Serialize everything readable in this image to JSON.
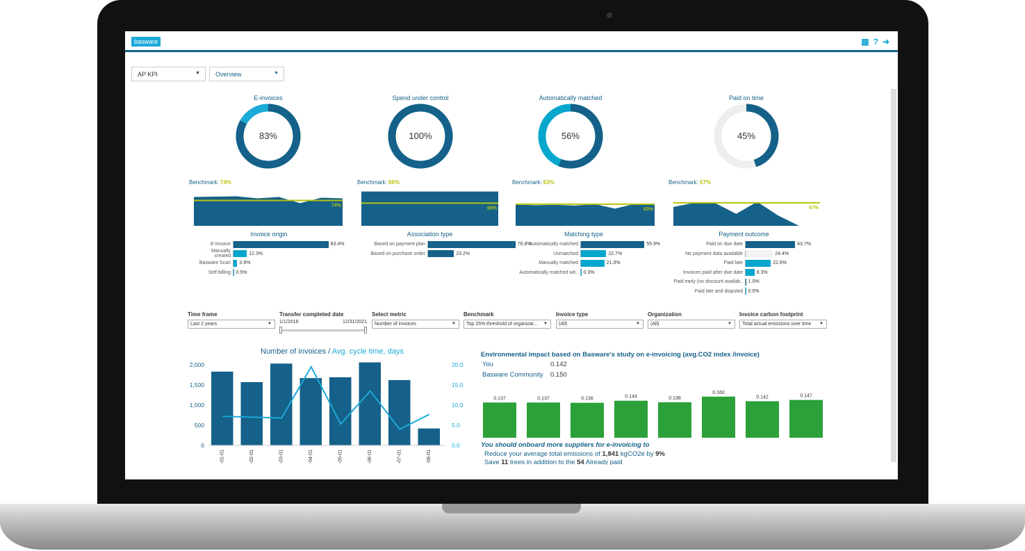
{
  "header": {
    "logo": "basware",
    "icons": [
      "film-icon",
      "help-icon",
      "logout-icon"
    ]
  },
  "selectors": [
    {
      "value": "AP KPI"
    },
    {
      "value": "Overview"
    }
  ],
  "kpis": [
    {
      "title": "E-invoices",
      "value": "83%",
      "pct": 83,
      "rest_color": "#1ba9d6",
      "benchmark_label": "Benchmark:",
      "benchmark": "74%",
      "series": [
        84,
        85,
        86,
        80,
        84,
        66,
        82,
        80
      ],
      "breakdown": {
        "title": "Invoice origin",
        "items": [
          {
            "label": "E-Invoice",
            "value": "83.4%",
            "pct": 83.4,
            "color": "#156189"
          },
          {
            "label": "Manually created",
            "value": "12.3%",
            "pct": 12.3,
            "color": "#07a6cd"
          },
          {
            "label": "Basware Scan",
            "value": "3.9%",
            "pct": 3.9,
            "color": "#07a6cd"
          },
          {
            "label": "Self-billing",
            "value": "0.5%",
            "pct": 0.5,
            "color": "#07a6cd"
          }
        ]
      }
    },
    {
      "title": "Spend under control",
      "value": "100%",
      "pct": 100,
      "rest_color": "#1ba9d6",
      "benchmark_label": "Benchmark:",
      "benchmark": "66%",
      "series": [
        100,
        100,
        100,
        100,
        100,
        100,
        100,
        100
      ],
      "breakdown": {
        "title": "Association type",
        "items": [
          {
            "label": "Based on payment plan",
            "value": "76.8%",
            "pct": 76.8,
            "color": "#156189"
          },
          {
            "label": "Based on purchase order",
            "value": "23.2%",
            "pct": 23.2,
            "color": "#156189"
          }
        ]
      }
    },
    {
      "title": "Automatically matched",
      "value": "56%",
      "pct": 56,
      "rest_color": "#07a6cd",
      "benchmark_label": "Benchmark:",
      "benchmark": "63%",
      "series": [
        62,
        60,
        61,
        59,
        63,
        50,
        64,
        62
      ],
      "breakdown": {
        "title": "Matching type",
        "items": [
          {
            "label": "Automatically matched",
            "value": "55.9%",
            "pct": 55.9,
            "color": "#156189"
          },
          {
            "label": "Unmatched",
            "value": "22.7%",
            "pct": 22.7,
            "color": "#07a6cd"
          },
          {
            "label": "Manually matched",
            "value": "21.0%",
            "pct": 21.0,
            "color": "#07a6cd"
          },
          {
            "label": "Automatically matched wit..",
            "value": "0.3%",
            "pct": 0.3,
            "color": "#07a6cd"
          }
        ]
      }
    },
    {
      "title": "Paid on time",
      "value": "45%",
      "pct": 45,
      "rest_color": "#eeeeee",
      "benchmark_label": "Benchmark:",
      "benchmark": "67%",
      "series": [
        55,
        67,
        66,
        35,
        70,
        30,
        0,
        0
      ],
      "breakdown": {
        "title": "Payment outcome",
        "items": [
          {
            "label": "Paid on due date",
            "value": "43.7%",
            "pct": 43.7,
            "color": "#156189"
          },
          {
            "label": "No payment data available",
            "value": "24.4%",
            "pct": 24.4,
            "color": "#f2f2f2"
          },
          {
            "label": "Paid late",
            "value": "22.6%",
            "pct": 22.6,
            "color": "#07a6cd"
          },
          {
            "label": "Invoices paid after due date",
            "value": "8.3%",
            "pct": 8.3,
            "color": "#07a6cd"
          },
          {
            "label": "Paid early (no discount availab..",
            "value": "1.0%",
            "pct": 1.0,
            "color": "#156189"
          },
          {
            "label": "Paid late and disputed",
            "value": "0.0%",
            "pct": 0,
            "color": "#07a6cd"
          }
        ]
      }
    }
  ],
  "filters": {
    "time_frame": {
      "label": "Time frame",
      "value": "Last 2 years"
    },
    "transfer": {
      "label": "Transfer completed date",
      "from": "1/1/2018",
      "to": "12/31/2021"
    },
    "metric": {
      "label": "Select metric",
      "value": "Number of invoices"
    },
    "benchmark": {
      "label": "Benchmark",
      "value": "Top 25% threshold of organizat..."
    },
    "invoice_type": {
      "label": "Invoice type",
      "value": "(All)"
    },
    "organization": {
      "label": "Organization",
      "value": "(All)"
    },
    "carbon": {
      "label": "Invoice carbon footprint",
      "value": "Total actual emissions over time"
    }
  },
  "chart_data": [
    {
      "type": "bar",
      "title_a": "Number of invoices /",
      "title_b": "Avg. cycle time, days",
      "categories": [
        "-01-01",
        "-02-01",
        "-03-01",
        "-04-01",
        "-05-01",
        "-06-01",
        "-07-01",
        "-08-01"
      ],
      "series": [
        {
          "name": "Number of invoices",
          "type": "bar",
          "values": [
            1830,
            1570,
            2030,
            1670,
            1690,
            2060,
            1620,
            420
          ],
          "color": "#156189"
        },
        {
          "name": "Avg. cycle time, days",
          "type": "line",
          "values": [
            7.2,
            7.0,
            6.8,
            19.5,
            5.3,
            13.5,
            4.0,
            7.7
          ],
          "color": "#1ba9d6"
        }
      ],
      "ylim": [
        0,
        2000
      ],
      "yticks": [
        "0",
        "500",
        "1,000",
        "1,500",
        "2,000"
      ],
      "y2lim": [
        0,
        20
      ],
      "y2ticks": [
        "0.0",
        "5.0",
        "10.0",
        "15.0",
        "20.0"
      ]
    },
    {
      "type": "bar",
      "values": [
        0.137,
        0.137,
        0.136,
        0.144,
        0.138,
        0.16,
        0.142,
        0.147
      ],
      "labels": [
        "0.137",
        "0.137",
        "0.136",
        "0.144",
        "0.138",
        "0.160",
        "0.142",
        "0.147"
      ],
      "color": "#2ca139"
    }
  ],
  "env": {
    "title": "Environmental impact based on Basware's study on e-invoicing (avg.CO2 index /invoice)",
    "you_label": "You",
    "you": "0.142",
    "community_label": "Basware Community",
    "community": "0.150",
    "advice": "You should onboard more suppliers for e-invoicing to",
    "line1_a": "Reduce your average total emissions of ",
    "line1_b": "1,841",
    "line1_c": " kgCO2e by ",
    "line1_d": "9%",
    "line2_a": "Save ",
    "line2_b": "11",
    "line2_c": " trees in addition to the ",
    "line2_d": "54",
    "line2_e": " Already paid"
  }
}
